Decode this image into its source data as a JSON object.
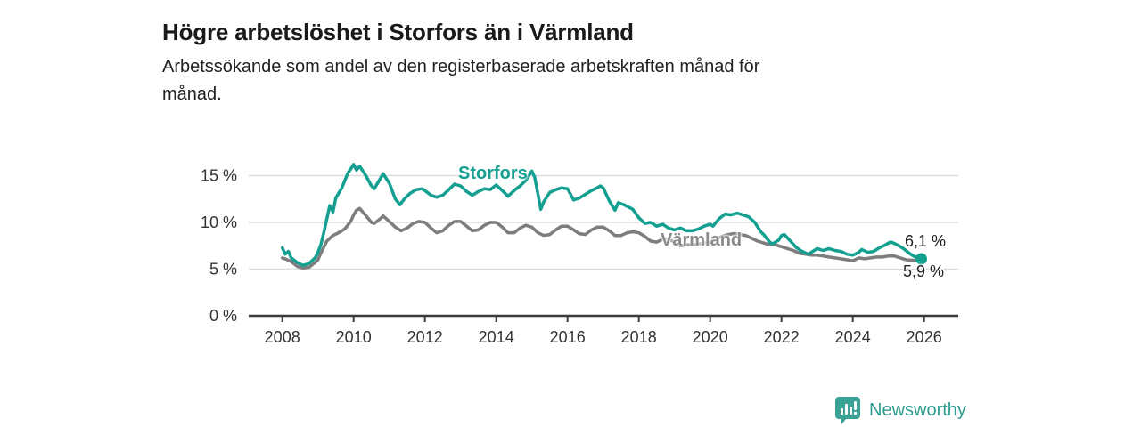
{
  "header": {
    "title": "Högre arbetslöshet i Storfors än i Värmland",
    "subtitle_line1": "Arbetssökande som andel av den registerbaserade arbetskraften månad för",
    "subtitle_line2": "månad."
  },
  "colors": {
    "storfors_teal": "#14a091",
    "varmland_gray": "#7d7d7d",
    "grid": "#dcdcdc",
    "axis": "#3a3a3a",
    "tick_text": "#333333",
    "brand_teal": "#3aa294"
  },
  "chart_data": {
    "type": "line",
    "unit": "%",
    "title": "Högre arbetslöshet i Storfors än i Värmland",
    "xlabel": "",
    "ylabel": "Arbetssökande som andel av den registerbaserade arbetskraften",
    "grid": true,
    "x_ticks": [
      2008,
      2010,
      2012,
      2014,
      2016,
      2018,
      2020,
      2022,
      2024,
      2026
    ],
    "y_ticks": [
      {
        "v": 0,
        "label": "0 %"
      },
      {
        "v": 5,
        "label": "5 %"
      },
      {
        "v": 10,
        "label": "10 %"
      },
      {
        "v": 15,
        "label": "15 %"
      }
    ],
    "ylim": [
      0,
      17.5
    ],
    "xlim": [
      2007.9,
      2027
    ],
    "series": [
      {
        "name": "Storfors",
        "color": "#14a091",
        "end_label": "6,1 %",
        "end_value": 6.1,
        "end_dot": true,
        "points": [
          [
            2008.0,
            7.3
          ],
          [
            2008.08,
            6.6
          ],
          [
            2008.17,
            6.9
          ],
          [
            2008.25,
            6.2
          ],
          [
            2008.42,
            5.7
          ],
          [
            2008.58,
            5.4
          ],
          [
            2008.75,
            5.6
          ],
          [
            2008.92,
            6.2
          ],
          [
            2009.0,
            6.8
          ],
          [
            2009.08,
            7.6
          ],
          [
            2009.17,
            9.0
          ],
          [
            2009.25,
            10.4
          ],
          [
            2009.33,
            11.8
          ],
          [
            2009.42,
            11.1
          ],
          [
            2009.5,
            12.6
          ],
          [
            2009.67,
            13.7
          ],
          [
            2009.83,
            15.2
          ],
          [
            2010.0,
            16.2
          ],
          [
            2010.08,
            15.6
          ],
          [
            2010.17,
            16.0
          ],
          [
            2010.33,
            15.1
          ],
          [
            2010.5,
            13.9
          ],
          [
            2010.58,
            13.6
          ],
          [
            2010.75,
            14.7
          ],
          [
            2010.83,
            15.2
          ],
          [
            2011.0,
            14.2
          ],
          [
            2011.17,
            12.5
          ],
          [
            2011.3,
            11.9
          ],
          [
            2011.42,
            12.5
          ],
          [
            2011.58,
            13.1
          ],
          [
            2011.75,
            13.5
          ],
          [
            2011.92,
            13.6
          ],
          [
            2012.0,
            13.4
          ],
          [
            2012.17,
            12.9
          ],
          [
            2012.33,
            12.7
          ],
          [
            2012.5,
            12.9
          ],
          [
            2012.67,
            13.5
          ],
          [
            2012.83,
            14.1
          ],
          [
            2013.0,
            13.9
          ],
          [
            2013.17,
            13.3
          ],
          [
            2013.33,
            12.9
          ],
          [
            2013.5,
            13.3
          ],
          [
            2013.67,
            13.6
          ],
          [
            2013.83,
            13.5
          ],
          [
            2014.0,
            14.0
          ],
          [
            2014.17,
            13.4
          ],
          [
            2014.33,
            12.8
          ],
          [
            2014.5,
            13.4
          ],
          [
            2014.67,
            13.9
          ],
          [
            2014.83,
            14.5
          ],
          [
            2015.0,
            15.5
          ],
          [
            2015.08,
            14.8
          ],
          [
            2015.25,
            11.4
          ],
          [
            2015.33,
            12.2
          ],
          [
            2015.5,
            13.2
          ],
          [
            2015.67,
            13.5
          ],
          [
            2015.83,
            13.7
          ],
          [
            2016.0,
            13.6
          ],
          [
            2016.17,
            12.4
          ],
          [
            2016.33,
            12.6
          ],
          [
            2016.5,
            13.0
          ],
          [
            2016.67,
            13.4
          ],
          [
            2016.83,
            13.7
          ],
          [
            2016.92,
            13.9
          ],
          [
            2017.0,
            13.7
          ],
          [
            2017.17,
            12.3
          ],
          [
            2017.33,
            11.3
          ],
          [
            2017.42,
            12.1
          ],
          [
            2017.58,
            11.9
          ],
          [
            2017.83,
            11.4
          ],
          [
            2018.0,
            10.5
          ],
          [
            2018.17,
            9.9
          ],
          [
            2018.33,
            10.0
          ],
          [
            2018.5,
            9.6
          ],
          [
            2018.67,
            9.8
          ],
          [
            2018.83,
            9.4
          ],
          [
            2019.0,
            9.2
          ],
          [
            2019.17,
            9.4
          ],
          [
            2019.33,
            9.1
          ],
          [
            2019.5,
            9.1
          ],
          [
            2019.67,
            9.3
          ],
          [
            2019.83,
            9.6
          ],
          [
            2020.0,
            9.8
          ],
          [
            2020.08,
            9.6
          ],
          [
            2020.25,
            10.4
          ],
          [
            2020.42,
            10.9
          ],
          [
            2020.58,
            10.8
          ],
          [
            2020.75,
            11.0
          ],
          [
            2020.92,
            10.8
          ],
          [
            2021.08,
            10.6
          ],
          [
            2021.25,
            10.0
          ],
          [
            2021.42,
            9.0
          ],
          [
            2021.5,
            8.7
          ],
          [
            2021.67,
            7.9
          ],
          [
            2021.75,
            7.7
          ],
          [
            2021.92,
            8.1
          ],
          [
            2022.0,
            8.6
          ],
          [
            2022.08,
            8.7
          ],
          [
            2022.25,
            8.0
          ],
          [
            2022.42,
            7.3
          ],
          [
            2022.58,
            6.9
          ],
          [
            2022.75,
            6.6
          ],
          [
            2022.92,
            7.0
          ],
          [
            2023.0,
            7.2
          ],
          [
            2023.17,
            7.0
          ],
          [
            2023.33,
            7.2
          ],
          [
            2023.5,
            7.0
          ],
          [
            2023.67,
            6.9
          ],
          [
            2023.83,
            6.6
          ],
          [
            2024.0,
            6.5
          ],
          [
            2024.17,
            6.8
          ],
          [
            2024.25,
            7.1
          ],
          [
            2024.42,
            6.8
          ],
          [
            2024.58,
            6.9
          ],
          [
            2024.75,
            7.3
          ],
          [
            2024.92,
            7.6
          ],
          [
            2025.0,
            7.8
          ],
          [
            2025.08,
            7.9
          ],
          [
            2025.25,
            7.6
          ],
          [
            2025.42,
            7.2
          ],
          [
            2025.58,
            6.7
          ],
          [
            2025.75,
            6.3
          ],
          [
            2025.83,
            6.35
          ],
          [
            2025.92,
            6.1
          ]
        ]
      },
      {
        "name": "Värmland",
        "color": "#7d7d7d",
        "end_label": "5,9 %",
        "end_value": 5.9,
        "end_dot": false,
        "points": [
          [
            2008.0,
            6.2
          ],
          [
            2008.08,
            6.1
          ],
          [
            2008.25,
            5.8
          ],
          [
            2008.42,
            5.3
          ],
          [
            2008.58,
            5.1
          ],
          [
            2008.75,
            5.2
          ],
          [
            2008.92,
            5.7
          ],
          [
            2009.0,
            6.0
          ],
          [
            2009.08,
            6.7
          ],
          [
            2009.17,
            7.4
          ],
          [
            2009.25,
            8.0
          ],
          [
            2009.42,
            8.6
          ],
          [
            2009.58,
            8.9
          ],
          [
            2009.75,
            9.3
          ],
          [
            2009.92,
            10.1
          ],
          [
            2010.0,
            10.8
          ],
          [
            2010.08,
            11.3
          ],
          [
            2010.17,
            11.5
          ],
          [
            2010.33,
            10.8
          ],
          [
            2010.5,
            10.0
          ],
          [
            2010.58,
            9.9
          ],
          [
            2010.75,
            10.4
          ],
          [
            2010.83,
            10.7
          ],
          [
            2011.0,
            10.1
          ],
          [
            2011.17,
            9.5
          ],
          [
            2011.33,
            9.1
          ],
          [
            2011.5,
            9.4
          ],
          [
            2011.67,
            9.9
          ],
          [
            2011.83,
            10.1
          ],
          [
            2012.0,
            10.0
          ],
          [
            2012.17,
            9.4
          ],
          [
            2012.33,
            8.9
          ],
          [
            2012.5,
            9.1
          ],
          [
            2012.67,
            9.7
          ],
          [
            2012.83,
            10.1
          ],
          [
            2013.0,
            10.1
          ],
          [
            2013.17,
            9.6
          ],
          [
            2013.33,
            9.1
          ],
          [
            2013.5,
            9.2
          ],
          [
            2013.67,
            9.7
          ],
          [
            2013.83,
            10.0
          ],
          [
            2014.0,
            10.0
          ],
          [
            2014.17,
            9.5
          ],
          [
            2014.33,
            8.9
          ],
          [
            2014.5,
            8.9
          ],
          [
            2014.67,
            9.4
          ],
          [
            2014.83,
            9.7
          ],
          [
            2015.0,
            9.5
          ],
          [
            2015.17,
            8.9
          ],
          [
            2015.33,
            8.6
          ],
          [
            2015.5,
            8.7
          ],
          [
            2015.67,
            9.2
          ],
          [
            2015.83,
            9.6
          ],
          [
            2016.0,
            9.6
          ],
          [
            2016.17,
            9.2
          ],
          [
            2016.33,
            8.8
          ],
          [
            2016.5,
            8.7
          ],
          [
            2016.67,
            9.2
          ],
          [
            2016.83,
            9.5
          ],
          [
            2017.0,
            9.5
          ],
          [
            2017.17,
            9.1
          ],
          [
            2017.33,
            8.6
          ],
          [
            2017.5,
            8.6
          ],
          [
            2017.67,
            8.9
          ],
          [
            2017.83,
            9.0
          ],
          [
            2018.0,
            8.9
          ],
          [
            2018.17,
            8.5
          ],
          [
            2018.33,
            8.0
          ],
          [
            2018.5,
            7.9
          ],
          [
            2018.67,
            8.2
          ],
          [
            2018.83,
            8.2
          ],
          [
            2019.0,
            7.9
          ],
          [
            2019.17,
            7.5
          ],
          [
            2019.33,
            7.6
          ],
          [
            2019.5,
            7.6
          ],
          [
            2019.67,
            7.7
          ],
          [
            2019.83,
            7.8
          ],
          [
            2020.0,
            7.9
          ],
          [
            2020.17,
            8.2
          ],
          [
            2020.33,
            8.5
          ],
          [
            2020.5,
            8.7
          ],
          [
            2020.67,
            8.8
          ],
          [
            2020.83,
            8.7
          ],
          [
            2021.0,
            8.6
          ],
          [
            2021.17,
            8.3
          ],
          [
            2021.33,
            8.0
          ],
          [
            2021.5,
            7.8
          ],
          [
            2021.67,
            7.6
          ],
          [
            2021.83,
            7.6
          ],
          [
            2022.0,
            7.4
          ],
          [
            2022.17,
            7.2
          ],
          [
            2022.33,
            7.0
          ],
          [
            2022.5,
            6.7
          ],
          [
            2022.67,
            6.6
          ],
          [
            2022.83,
            6.5
          ],
          [
            2023.0,
            6.5
          ],
          [
            2023.17,
            6.4
          ],
          [
            2023.33,
            6.3
          ],
          [
            2023.5,
            6.2
          ],
          [
            2023.67,
            6.1
          ],
          [
            2023.83,
            6.0
          ],
          [
            2024.0,
            5.9
          ],
          [
            2024.17,
            6.2
          ],
          [
            2024.33,
            6.1
          ],
          [
            2024.5,
            6.2
          ],
          [
            2024.67,
            6.3
          ],
          [
            2024.83,
            6.3
          ],
          [
            2025.0,
            6.4
          ],
          [
            2025.17,
            6.4
          ],
          [
            2025.33,
            6.2
          ],
          [
            2025.5,
            6.0
          ],
          [
            2025.67,
            5.95
          ],
          [
            2025.83,
            5.9
          ],
          [
            2025.92,
            5.9
          ]
        ]
      }
    ]
  },
  "footer": {
    "brand": "Newsworthy",
    "logo_icon": "bar-chart-speech-bubble-icon"
  }
}
